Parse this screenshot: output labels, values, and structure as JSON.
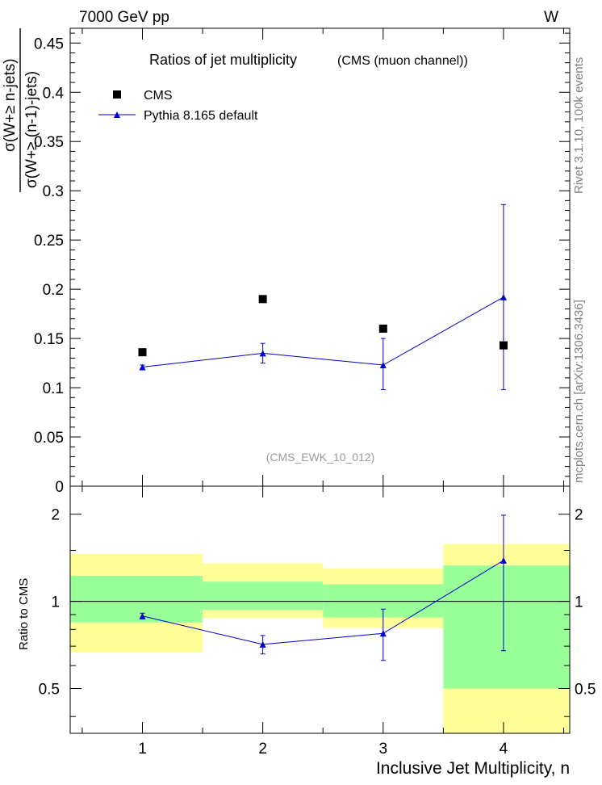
{
  "header": {
    "left": "7000 GeV pp",
    "right": "W",
    "side_top": "Rivet 3.1.10,  100k events",
    "side_bottom": "mcplots.cern.ch [arXiv:1306.3436]"
  },
  "colors": {
    "data": "#000000",
    "mc": "#0000cc",
    "band_inner": "#99ff99",
    "band_outer": "#ffff99",
    "id_text": "#999999",
    "side_text": "#808080"
  },
  "chart_data": [
    {
      "type": "scatter",
      "title": "Ratios of jet multiplicity",
      "subtitle": "(CMS (muon channel))",
      "ylabel_num": "σ(W+≥ n-jets)",
      "ylabel_den": "σ(W+≥ (n-1)-jets)",
      "analysis_id": "(CMS_EWK_10_012)",
      "xlim": [
        0.4,
        4.55
      ],
      "ylim": [
        0,
        0.465
      ],
      "yticks": [
        0,
        0.05,
        0.1,
        0.15,
        0.2,
        0.25,
        0.3,
        0.35,
        0.4,
        0.45
      ],
      "ytick_labels": [
        "0",
        "0.05",
        "0.1",
        "0.15",
        "0.2",
        "0.25",
        "0.3",
        "0.35",
        "0.4",
        "0.45"
      ],
      "legend_position": "top-left",
      "series": [
        {
          "name": "CMS",
          "marker": "square",
          "x": [
            1,
            2,
            3,
            4
          ],
          "y": [
            0.136,
            0.19,
            0.16,
            0.143
          ]
        },
        {
          "name": "Pythia 8.165 default",
          "marker": "triangle",
          "x": [
            1,
            2,
            3,
            4
          ],
          "y": [
            0.121,
            0.135,
            0.123,
            0.192
          ],
          "yerr_low": [
            0.002,
            0.01,
            0.025,
            0.094
          ],
          "yerr_high": [
            0.002,
            0.01,
            0.027,
            0.094
          ]
        }
      ]
    },
    {
      "type": "scatter",
      "ylabel": "Ratio to CMS",
      "xlabel": "Inclusive Jet Multiplicity, n",
      "xlim": [
        0.4,
        4.55
      ],
      "ylim": [
        0.35,
        2.5
      ],
      "ylog": true,
      "xticks": [
        1,
        2,
        3,
        4
      ],
      "xtick_labels": [
        "1",
        "2",
        "3",
        "4"
      ],
      "yticks_labeled": [
        0.5,
        1,
        2
      ],
      "ytick_labels": [
        "0.5",
        "1",
        "2"
      ],
      "reference_line": 1,
      "bands": [
        {
          "x0": 0.4,
          "x1": 1.5,
          "outer": [
            0.665,
            1.46
          ],
          "inner": [
            0.845,
            1.225
          ]
        },
        {
          "x0": 1.5,
          "x1": 2.5,
          "outer": [
            0.875,
            1.355
          ],
          "inner": [
            0.935,
            1.17
          ]
        },
        {
          "x0": 2.5,
          "x1": 3.5,
          "outer": [
            0.81,
            1.3
          ],
          "inner": [
            0.88,
            1.145
          ]
        },
        {
          "x0": 3.5,
          "x1": 4.55,
          "outer": [
            0.35,
            1.58
          ],
          "inner": [
            0.5,
            1.33
          ]
        }
      ],
      "series": [
        {
          "name": "Pythia 8.165 default",
          "marker": "triangle",
          "x": [
            1,
            2,
            3,
            4
          ],
          "y": [
            0.89,
            0.71,
            0.775,
            1.385
          ],
          "yerr_low": [
            0.02,
            0.052,
            0.15,
            0.71
          ],
          "yerr_high": [
            0.02,
            0.052,
            0.165,
            0.6
          ]
        }
      ]
    }
  ]
}
